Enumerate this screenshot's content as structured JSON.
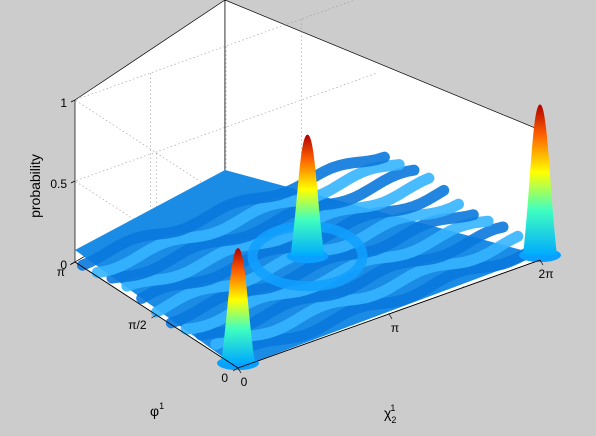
{
  "chart_data": {
    "type": "surface",
    "zlabel": "probability",
    "zlim": [
      0,
      1
    ],
    "z_ticks": [
      "0",
      "0.5",
      "1"
    ],
    "xlabel": {
      "base": "χ",
      "sub": "2",
      "sup": "1"
    },
    "x_ticks": [
      "0",
      "π",
      "2π"
    ],
    "ylabel": {
      "base": "φ",
      "sup": "1"
    },
    "y_ticks": [
      "0",
      "π/2",
      "π"
    ],
    "grid": true,
    "colormap": "jet",
    "peaks": [
      {
        "x": 0.0,
        "y": 0.0,
        "height": 0.74
      },
      {
        "x": 3.1416,
        "y": 1.5708,
        "height": 0.78
      },
      {
        "x": 6.2832,
        "y": 0.0,
        "height": 0.96
      }
    ]
  }
}
